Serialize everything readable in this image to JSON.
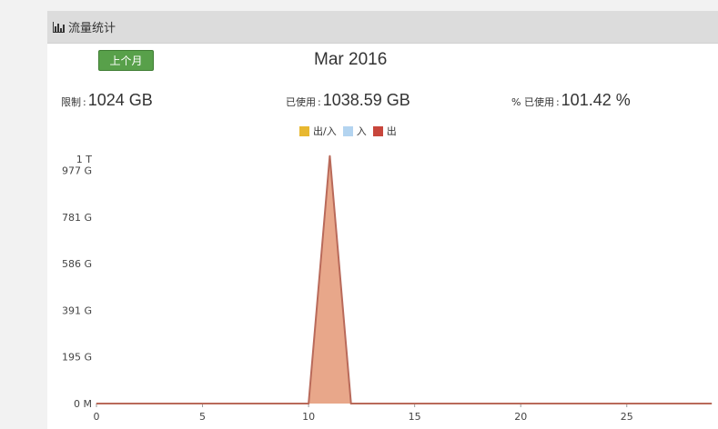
{
  "panel": {
    "title": "流量统计",
    "icon": "bar-chart-icon"
  },
  "controls": {
    "prev_month_label": "上个月",
    "month": "Mar 2016"
  },
  "stats": {
    "limit": {
      "label": "限制",
      "value": "1024 GB"
    },
    "used": {
      "label": "已使用",
      "value": "1038.59 GB"
    },
    "percent": {
      "label": "% 已使用",
      "value": "101.42 %"
    }
  },
  "legend": [
    {
      "name": "出/入",
      "color": "#e8b830"
    },
    {
      "name": "入",
      "color": "#b3d4f0"
    },
    {
      "name": "出",
      "color": "#c8463c"
    }
  ],
  "chart_data": {
    "type": "area",
    "x": [
      0,
      10,
      11,
      12,
      29
    ],
    "series": [
      {
        "name": "出/入",
        "values": [
          0,
          0,
          1038.59,
          0,
          0
        ]
      }
    ],
    "y_unit": "GB",
    "ylim": [
      0,
      1024
    ],
    "y_ticks": [
      {
        "value": 0,
        "label": "0 M"
      },
      {
        "value": 195.3,
        "label": "195 G"
      },
      {
        "value": 390.6,
        "label": "391 G"
      },
      {
        "value": 585.9,
        "label": "586 G"
      },
      {
        "value": 781.3,
        "label": "781 G"
      },
      {
        "value": 976.6,
        "label": "977 G"
      },
      {
        "value": 1024,
        "label": "1 T"
      }
    ],
    "x_ticks": [
      0,
      5,
      10,
      15,
      20,
      25
    ],
    "xlim": [
      0,
      29.3
    ],
    "grid": false,
    "legend_position": "top-center",
    "fill_color": "#e8a78a",
    "line_color": "#b96a5a"
  }
}
